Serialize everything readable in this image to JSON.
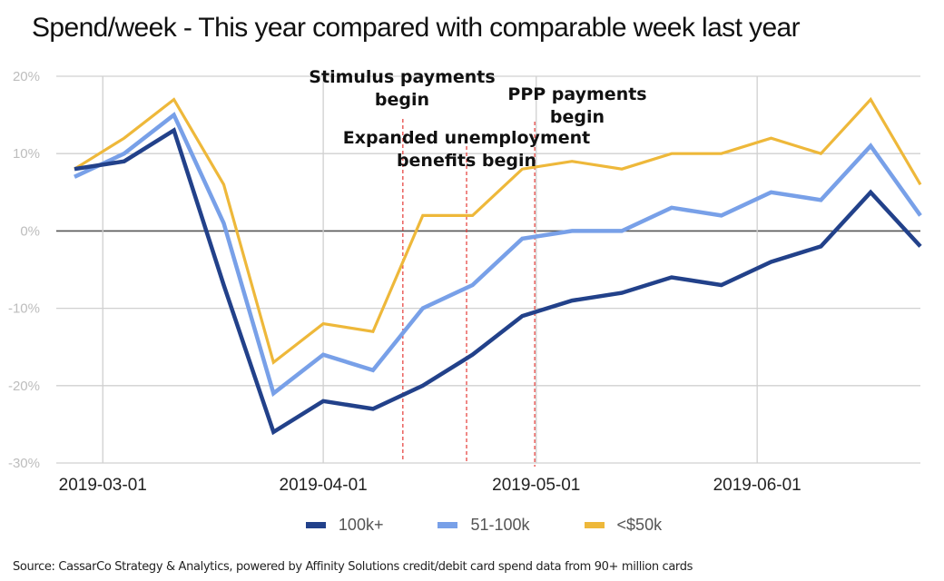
{
  "chart_data": {
    "type": "line",
    "title": "Spend/week - This year compared with comparable week last year",
    "xlabel": "",
    "ylabel": "",
    "ylim": [
      -30,
      20
    ],
    "y_ticks": [
      "20%",
      "10%",
      "0%",
      "-10%",
      "-20%",
      "-30%"
    ],
    "y_tick_values": [
      20,
      10,
      0,
      -10,
      -20,
      -30
    ],
    "x_tick_labels": [
      "2019-03-01",
      "2019-04-01",
      "2019-05-01",
      "2019-06-01"
    ],
    "x_tick_weeks": [
      0.57,
      5.0,
      9.28,
      13.72
    ],
    "grid": true,
    "x": [
      0,
      1,
      2,
      3,
      4,
      5,
      6,
      7,
      8,
      9,
      10,
      11,
      12,
      13,
      14,
      15,
      16,
      17
    ],
    "series": [
      {
        "name": "100k+",
        "color": "#22418a",
        "values": [
          8,
          9,
          13,
          -7,
          -26,
          -22,
          -23,
          -20,
          -16,
          -11,
          -9,
          -8,
          -6,
          -7,
          -4,
          -2,
          5,
          -2
        ]
      },
      {
        "name": "51-100k",
        "color": "#78a0e8",
        "values": [
          7,
          10,
          15,
          1,
          -21,
          -16,
          -18,
          -10,
          -7,
          -1,
          0,
          0,
          3,
          2,
          5,
          4,
          11,
          2
        ]
      },
      {
        "name": "<$50k",
        "color": "#eeb83a",
        "values": [
          8,
          12,
          17,
          6,
          -17,
          -12,
          -13,
          2,
          2,
          8,
          9,
          8,
          10,
          10,
          12,
          10,
          17,
          6
        ]
      }
    ],
    "legend_position": "bottom",
    "event_lines": [
      {
        "week": 6.6,
        "color": "#e53935"
      },
      {
        "week": 7.88,
        "color": "#e53935"
      },
      {
        "week": 9.25,
        "color": "#e53935"
      }
    ],
    "annotations": [
      {
        "lines": [
          "Stimulus payments",
          "begin"
        ]
      },
      {
        "lines": [
          "Expanded unemployment",
          "benefits begin"
        ]
      },
      {
        "lines": [
          "PPP payments",
          "begin"
        ]
      }
    ]
  },
  "source": "Source: CassarCo Strategy & Analytics, powered by Affinity  Solutions credit/debit card spend data from 90+ million cards"
}
